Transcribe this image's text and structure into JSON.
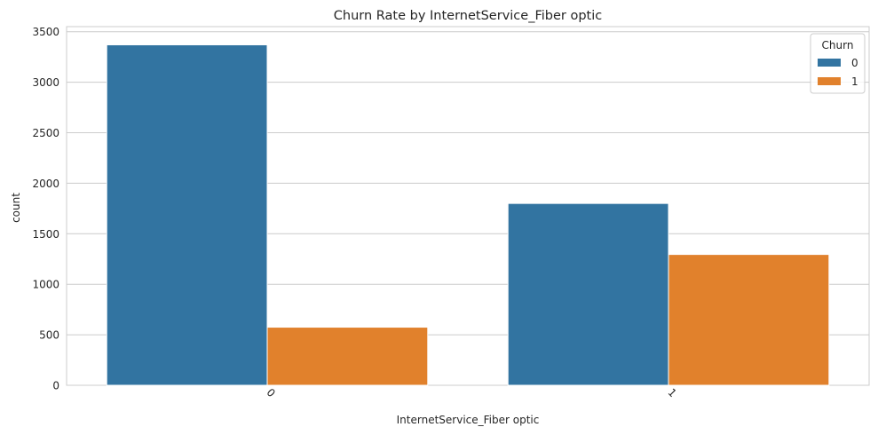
{
  "chart_data": {
    "type": "bar",
    "title": "Churn Rate by InternetService_Fiber optic",
    "xlabel": "InternetService_Fiber optic",
    "ylabel": "count",
    "categories": [
      "0",
      "1"
    ],
    "series": [
      {
        "name": "0",
        "values": [
          3370,
          1800
        ],
        "color": "#3274a1"
      },
      {
        "name": "1",
        "values": [
          575,
          1295
        ],
        "color": "#e1812c"
      }
    ],
    "ylim": [
      0,
      3550
    ],
    "yticks": [
      0,
      500,
      1000,
      1500,
      2000,
      2500,
      3000,
      3500
    ],
    "grid": true,
    "legend": {
      "title": "Churn",
      "placement": "top-right"
    }
  }
}
